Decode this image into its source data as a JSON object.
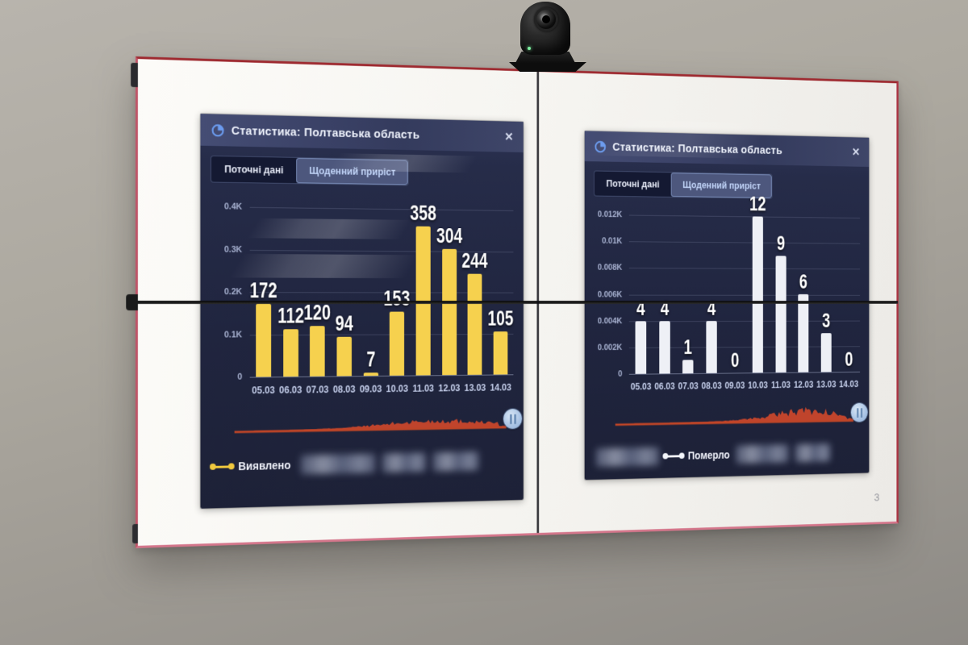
{
  "scene": {
    "page_indicator": "3"
  },
  "chart_data": [
    {
      "type": "bar",
      "title": "Статистика: Полтавська область",
      "active_view": "Щоденний приріст",
      "series_name": "Виявлено",
      "categories": [
        "05.03",
        "06.03",
        "07.03",
        "08.03",
        "09.03",
        "10.03",
        "11.03",
        "12.03",
        "13.03",
        "14.03"
      ],
      "values": [
        172,
        112,
        120,
        94,
        7,
        153,
        358,
        304,
        244,
        105
      ],
      "y_ticks": [
        "0.4K",
        "0.3K",
        "0.2K",
        "0.1K",
        "0"
      ],
      "y_max": 400,
      "xlabel": "",
      "ylabel": "",
      "bar_color": "#f6d14e",
      "grid": true,
      "legend_position": "bottom-left"
    },
    {
      "type": "bar",
      "title": "Статистика: Полтавська область",
      "active_view": "Щоденний приріст",
      "series_name": "Померло",
      "categories": [
        "05.03",
        "06.03",
        "07.03",
        "08.03",
        "09.03",
        "10.03",
        "11.03",
        "12.03",
        "13.03",
        "14.03"
      ],
      "values": [
        4,
        4,
        1,
        4,
        0,
        12,
        9,
        6,
        3,
        0
      ],
      "y_ticks": [
        "0.012K",
        "0.01K",
        "0.008K",
        "0.006K",
        "0.004K",
        "0.002K",
        "0"
      ],
      "y_max": 12,
      "xlabel": "",
      "ylabel": "",
      "bar_color": "#eef0f6",
      "grid": true,
      "legend_position": "bottom-center"
    }
  ],
  "panels": [
    {
      "title": "Статистика: Полтавська область",
      "close_glyph": "✕",
      "tabs": [
        {
          "label": "Поточні дані",
          "active": false
        },
        {
          "label": "Щоденний приріст",
          "active": true
        }
      ],
      "legend": {
        "label": "Виявлено",
        "marker_color": "#f0c83e"
      }
    },
    {
      "title": "Статистика: Полтавська область",
      "close_glyph": "✕",
      "tabs": [
        {
          "label": "Поточні дані",
          "active": false
        },
        {
          "label": "Щоденний приріст",
          "active": true
        }
      ],
      "legend": {
        "label": "Померло",
        "marker_color": "#f4f6fb"
      }
    }
  ],
  "colors": {
    "bar_yellow": "#f6d14e",
    "bar_white": "#eef0f6",
    "sparkline_red": "#c9472b",
    "panel_bg": "#20253f",
    "bezel_red": "#ab3342",
    "active_tab": "#4d577d"
  }
}
